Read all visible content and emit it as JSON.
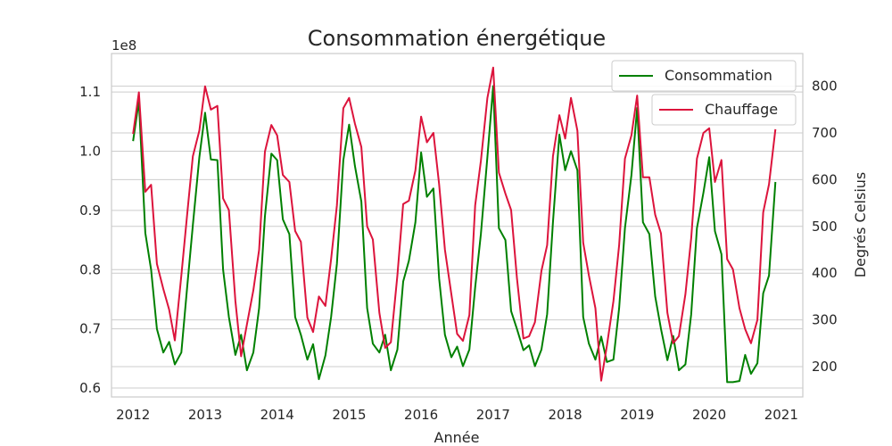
{
  "chart_data": {
    "type": "line",
    "title": "Consommation énergétique",
    "xlabel": "Année",
    "ylabel_right": "Degrés Celsius",
    "left_axis": {
      "multiplier_label": "1e8",
      "ylim": [
        0.585,
        1.165
      ],
      "ticks": [
        0.6,
        0.7,
        0.8,
        0.9,
        1.0,
        1.1
      ],
      "tick_labels": [
        "0.6",
        "0.7",
        "0.8",
        "0.9",
        "1.0",
        "1.1"
      ]
    },
    "right_axis": {
      "ylim": [
        135,
        870
      ],
      "ticks": [
        200,
        300,
        400,
        500,
        600,
        700,
        800
      ],
      "tick_labels": [
        "200",
        "300",
        "400",
        "500",
        "600",
        "700",
        "800"
      ]
    },
    "x_axis": {
      "xlim": [
        2011.7,
        2021.3
      ],
      "ticks": [
        2012,
        2013,
        2014,
        2015,
        2016,
        2017,
        2018,
        2019,
        2020,
        2021
      ],
      "tick_labels": [
        "2012",
        "2013",
        "2014",
        "2015",
        "2016",
        "2017",
        "2018",
        "2019",
        "2020",
        "2021"
      ]
    },
    "grid": true,
    "series": [
      {
        "name": "Consommation",
        "axis": "left",
        "color": "#008000",
        "legend_position": "top-right",
        "points": [
          [
            2012.0,
            1.017
          ],
          [
            2012.08,
            1.085
          ],
          [
            2012.17,
            0.862
          ],
          [
            2012.25,
            0.8
          ],
          [
            2012.33,
            0.7
          ],
          [
            2012.42,
            0.66
          ],
          [
            2012.5,
            0.678
          ],
          [
            2012.58,
            0.64
          ],
          [
            2012.67,
            0.66
          ],
          [
            2012.75,
            0.77
          ],
          [
            2012.83,
            0.875
          ],
          [
            2012.92,
            0.99
          ],
          [
            2013.0,
            1.065
          ],
          [
            2013.08,
            0.986
          ],
          [
            2013.17,
            0.985
          ],
          [
            2013.25,
            0.8
          ],
          [
            2013.33,
            0.72
          ],
          [
            2013.42,
            0.656
          ],
          [
            2013.5,
            0.69
          ],
          [
            2013.58,
            0.63
          ],
          [
            2013.67,
            0.66
          ],
          [
            2013.75,
            0.735
          ],
          [
            2013.83,
            0.89
          ],
          [
            2013.92,
            0.996
          ],
          [
            2014.0,
            0.985
          ],
          [
            2014.08,
            0.885
          ],
          [
            2014.17,
            0.86
          ],
          [
            2014.25,
            0.72
          ],
          [
            2014.33,
            0.69
          ],
          [
            2014.42,
            0.648
          ],
          [
            2014.5,
            0.674
          ],
          [
            2014.58,
            0.615
          ],
          [
            2014.67,
            0.655
          ],
          [
            2014.75,
            0.72
          ],
          [
            2014.83,
            0.81
          ],
          [
            2014.92,
            0.985
          ],
          [
            2015.0,
            1.045
          ],
          [
            2015.08,
            0.975
          ],
          [
            2015.17,
            0.915
          ],
          [
            2015.25,
            0.735
          ],
          [
            2015.33,
            0.675
          ],
          [
            2015.42,
            0.66
          ],
          [
            2015.5,
            0.69
          ],
          [
            2015.58,
            0.63
          ],
          [
            2015.67,
            0.665
          ],
          [
            2015.75,
            0.78
          ],
          [
            2015.83,
            0.815
          ],
          [
            2015.92,
            0.88
          ],
          [
            2016.0,
            0.998
          ],
          [
            2016.08,
            0.923
          ],
          [
            2016.17,
            0.937
          ],
          [
            2016.25,
            0.785
          ],
          [
            2016.33,
            0.69
          ],
          [
            2016.42,
            0.652
          ],
          [
            2016.5,
            0.67
          ],
          [
            2016.58,
            0.637
          ],
          [
            2016.67,
            0.665
          ],
          [
            2016.75,
            0.77
          ],
          [
            2016.83,
            0.86
          ],
          [
            2016.92,
            0.99
          ],
          [
            2017.0,
            1.11
          ],
          [
            2017.08,
            0.87
          ],
          [
            2017.17,
            0.85
          ],
          [
            2017.25,
            0.73
          ],
          [
            2017.33,
            0.7
          ],
          [
            2017.42,
            0.664
          ],
          [
            2017.5,
            0.672
          ],
          [
            2017.58,
            0.637
          ],
          [
            2017.67,
            0.665
          ],
          [
            2017.75,
            0.725
          ],
          [
            2017.83,
            0.88
          ],
          [
            2017.92,
            1.028
          ],
          [
            2018.0,
            0.968
          ],
          [
            2018.08,
            1.0
          ],
          [
            2018.17,
            0.968
          ],
          [
            2018.25,
            0.72
          ],
          [
            2018.33,
            0.675
          ],
          [
            2018.42,
            0.648
          ],
          [
            2018.5,
            0.687
          ],
          [
            2018.58,
            0.644
          ],
          [
            2018.67,
            0.648
          ],
          [
            2018.75,
            0.735
          ],
          [
            2018.83,
            0.87
          ],
          [
            2018.92,
            0.96
          ],
          [
            2019.0,
            1.073
          ],
          [
            2019.08,
            0.88
          ],
          [
            2019.17,
            0.86
          ],
          [
            2019.25,
            0.755
          ],
          [
            2019.33,
            0.7
          ],
          [
            2019.42,
            0.647
          ],
          [
            2019.5,
            0.688
          ],
          [
            2019.58,
            0.63
          ],
          [
            2019.67,
            0.64
          ],
          [
            2019.75,
            0.725
          ],
          [
            2019.83,
            0.87
          ],
          [
            2019.92,
            0.93
          ],
          [
            2020.0,
            0.99
          ],
          [
            2020.08,
            0.865
          ],
          [
            2020.17,
            0.826
          ],
          [
            2020.25,
            0.61
          ],
          [
            2020.33,
            0.61
          ],
          [
            2020.42,
            0.612
          ],
          [
            2020.5,
            0.656
          ],
          [
            2020.58,
            0.624
          ],
          [
            2020.67,
            0.642
          ],
          [
            2020.75,
            0.76
          ],
          [
            2020.83,
            0.79
          ],
          [
            2020.92,
            0.948
          ]
        ]
      },
      {
        "name": "Chauffage",
        "axis": "right",
        "color": "#dc143c",
        "legend_position": "upper-right",
        "points": [
          [
            2012.0,
            698
          ],
          [
            2012.08,
            787
          ],
          [
            2012.17,
            574
          ],
          [
            2012.25,
            589
          ],
          [
            2012.33,
            420
          ],
          [
            2012.42,
            366
          ],
          [
            2012.5,
            322
          ],
          [
            2012.58,
            256
          ],
          [
            2012.67,
            395
          ],
          [
            2012.75,
            525
          ],
          [
            2012.83,
            650
          ],
          [
            2012.92,
            705
          ],
          [
            2013.0,
            800
          ],
          [
            2013.08,
            750
          ],
          [
            2013.17,
            758
          ],
          [
            2013.25,
            560
          ],
          [
            2013.33,
            535
          ],
          [
            2013.42,
            340
          ],
          [
            2013.5,
            222
          ],
          [
            2013.58,
            290
          ],
          [
            2013.67,
            363
          ],
          [
            2013.75,
            450
          ],
          [
            2013.83,
            660
          ],
          [
            2013.92,
            717
          ],
          [
            2014.0,
            695
          ],
          [
            2014.08,
            610
          ],
          [
            2014.17,
            595
          ],
          [
            2014.25,
            490
          ],
          [
            2014.33,
            467
          ],
          [
            2014.42,
            305
          ],
          [
            2014.5,
            274
          ],
          [
            2014.58,
            350
          ],
          [
            2014.67,
            330
          ],
          [
            2014.75,
            430
          ],
          [
            2014.83,
            545
          ],
          [
            2014.92,
            753
          ],
          [
            2015.0,
            775
          ],
          [
            2015.08,
            720
          ],
          [
            2015.17,
            670
          ],
          [
            2015.25,
            500
          ],
          [
            2015.33,
            472
          ],
          [
            2015.42,
            315
          ],
          [
            2015.5,
            240
          ],
          [
            2015.58,
            252
          ],
          [
            2015.67,
            395
          ],
          [
            2015.75,
            548
          ],
          [
            2015.83,
            555
          ],
          [
            2015.92,
            620
          ],
          [
            2016.0,
            735
          ],
          [
            2016.08,
            680
          ],
          [
            2016.17,
            700
          ],
          [
            2016.25,
            590
          ],
          [
            2016.33,
            450
          ],
          [
            2016.42,
            355
          ],
          [
            2016.5,
            270
          ],
          [
            2016.58,
            255
          ],
          [
            2016.67,
            310
          ],
          [
            2016.75,
            545
          ],
          [
            2016.83,
            640
          ],
          [
            2016.92,
            775
          ],
          [
            2017.0,
            840
          ],
          [
            2017.08,
            615
          ],
          [
            2017.17,
            570
          ],
          [
            2017.25,
            535
          ],
          [
            2017.33,
            390
          ],
          [
            2017.42,
            260
          ],
          [
            2017.5,
            265
          ],
          [
            2017.58,
            295
          ],
          [
            2017.67,
            405
          ],
          [
            2017.75,
            460
          ],
          [
            2017.83,
            650
          ],
          [
            2017.92,
            738
          ],
          [
            2018.0,
            688
          ],
          [
            2018.08,
            775
          ],
          [
            2018.17,
            705
          ],
          [
            2018.25,
            465
          ],
          [
            2018.33,
            395
          ],
          [
            2018.42,
            325
          ],
          [
            2018.5,
            170
          ],
          [
            2018.58,
            245
          ],
          [
            2018.67,
            340
          ],
          [
            2018.75,
            460
          ],
          [
            2018.83,
            645
          ],
          [
            2018.92,
            695
          ],
          [
            2019.0,
            780
          ],
          [
            2019.08,
            605
          ],
          [
            2019.17,
            605
          ],
          [
            2019.25,
            525
          ],
          [
            2019.33,
            485
          ],
          [
            2019.42,
            315
          ],
          [
            2019.5,
            250
          ],
          [
            2019.58,
            265
          ],
          [
            2019.67,
            355
          ],
          [
            2019.75,
            475
          ],
          [
            2019.83,
            645
          ],
          [
            2019.92,
            700
          ],
          [
            2020.0,
            710
          ],
          [
            2020.08,
            595
          ],
          [
            2020.17,
            642
          ],
          [
            2020.25,
            430
          ],
          [
            2020.33,
            408
          ],
          [
            2020.42,
            325
          ],
          [
            2020.5,
            280
          ],
          [
            2020.58,
            250
          ],
          [
            2020.67,
            300
          ],
          [
            2020.75,
            530
          ],
          [
            2020.83,
            590
          ],
          [
            2020.92,
            708
          ]
        ]
      }
    ]
  }
}
